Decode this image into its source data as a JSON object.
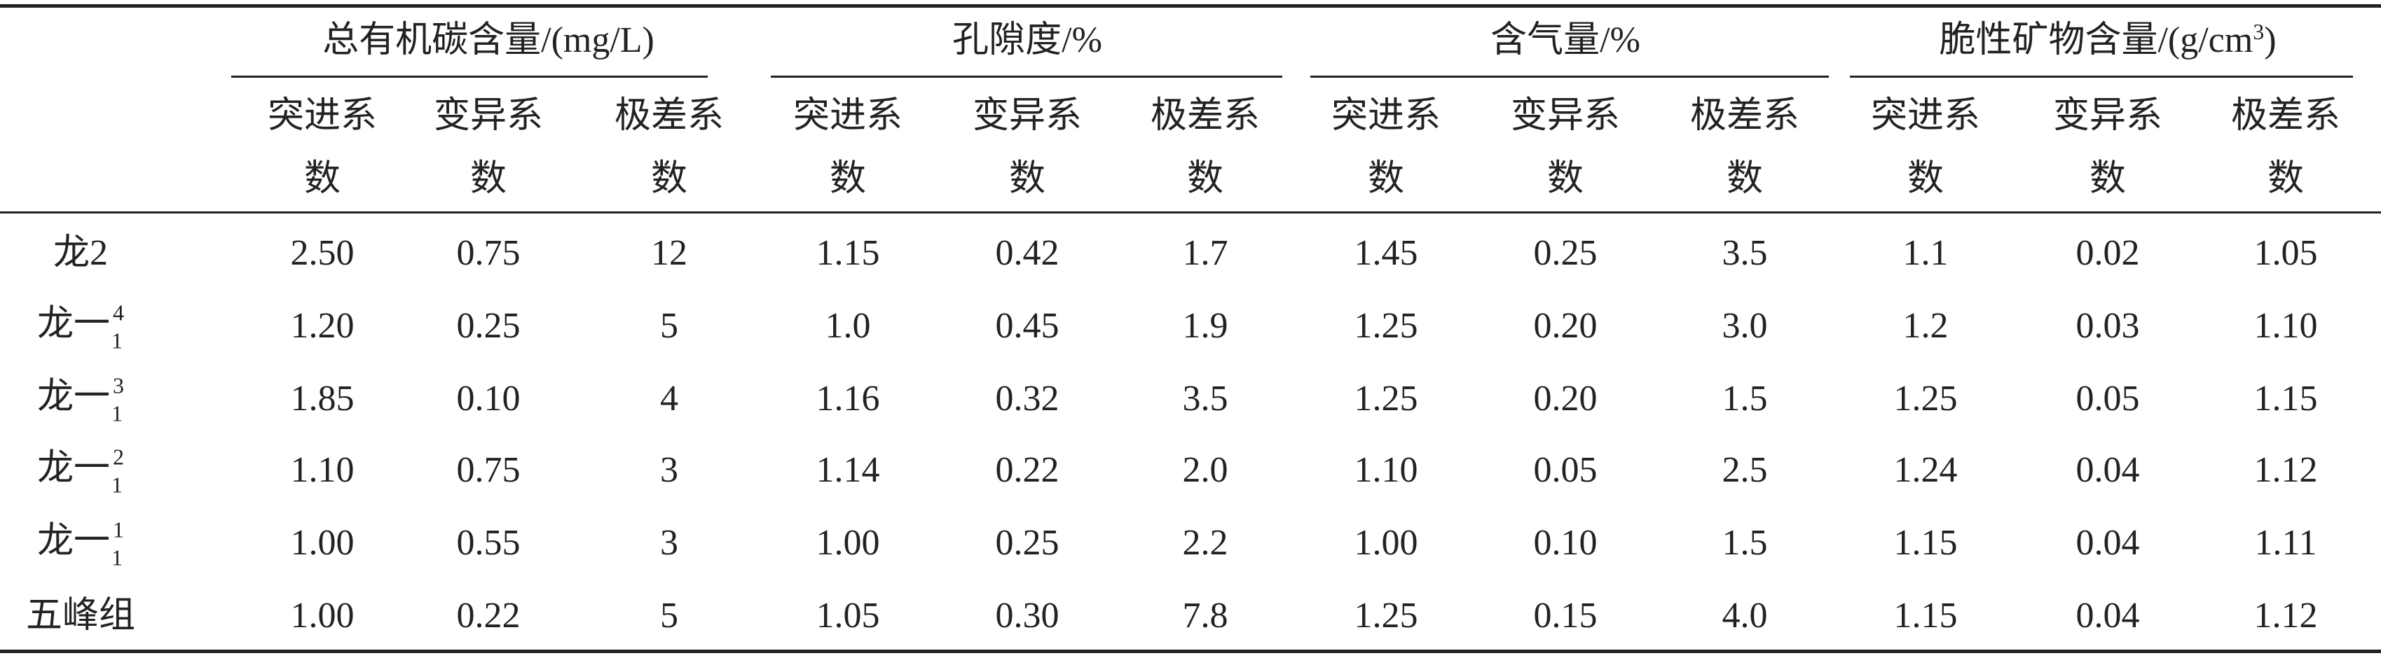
{
  "groups": [
    {
      "label": "总有机碳含量/(mg/L)"
    },
    {
      "label": "孔隙度/%"
    },
    {
      "label": "含气量/%"
    },
    {
      "label_main": "脆性矿物含量/(g/cm",
      "label_sup": "3",
      "label_end": ")"
    }
  ],
  "subheaders": [
    {
      "line1": "突进系",
      "line2": "数"
    },
    {
      "line1": "变异系",
      "line2": "数"
    },
    {
      "line1": "极差系",
      "line2": "数"
    }
  ],
  "rows": [
    {
      "label": "龙2",
      "sub": "",
      "sup": "",
      "values": [
        "2.50",
        "0.75",
        "12",
        "1.15",
        "0.42",
        "1.7",
        "1.45",
        "0.25",
        "3.5",
        "1.1",
        "0.02",
        "1.05"
      ]
    },
    {
      "label": "龙一",
      "sub": "1",
      "sup": "4",
      "values": [
        "1.20",
        "0.25",
        "5",
        "1.0",
        "0.45",
        "1.9",
        "1.25",
        "0.20",
        "3.0",
        "1.2",
        "0.03",
        "1.10"
      ]
    },
    {
      "label": "龙一",
      "sub": "1",
      "sup": "3",
      "values": [
        "1.85",
        "0.10",
        "4",
        "1.16",
        "0.32",
        "3.5",
        "1.25",
        "0.20",
        "1.5",
        "1.25",
        "0.05",
        "1.15"
      ]
    },
    {
      "label": "龙一",
      "sub": "1",
      "sup": "2",
      "values": [
        "1.10",
        "0.75",
        "3",
        "1.14",
        "0.22",
        "2.0",
        "1.10",
        "0.05",
        "2.5",
        "1.24",
        "0.04",
        "1.12"
      ]
    },
    {
      "label": "龙一",
      "sub": "1",
      "sup": "1",
      "values": [
        "1.00",
        "0.55",
        "3",
        "1.00",
        "0.25",
        "2.2",
        "1.00",
        "0.10",
        "1.5",
        "1.15",
        "0.04",
        "1.11"
      ]
    },
    {
      "label": "五峰组",
      "sub": "",
      "sup": "",
      "values": [
        "1.00",
        "0.22",
        "5",
        "1.05",
        "0.30",
        "7.8",
        "1.25",
        "0.15",
        "4.0",
        "1.15",
        "0.04",
        "1.12"
      ]
    }
  ]
}
